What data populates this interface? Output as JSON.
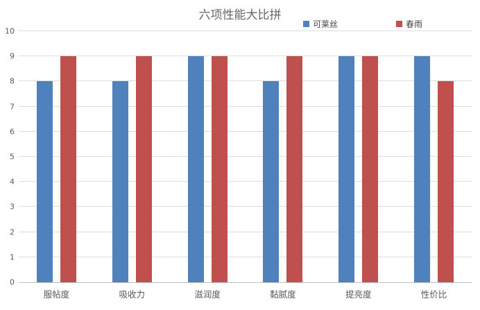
{
  "chart_data": {
    "type": "bar",
    "title": "六项性能大比拼",
    "categories": [
      "服帖度",
      "吸收力",
      "滋润度",
      "黏腻度",
      "提亮度",
      "性价比"
    ],
    "series": [
      {
        "name": "可莱丝",
        "color": "#4f81bd",
        "values": [
          8,
          8,
          9,
          8,
          9,
          9
        ]
      },
      {
        "name": "春雨",
        "color": "#c0504d",
        "values": [
          9,
          9,
          9,
          9,
          9,
          8
        ]
      }
    ],
    "xlabel": "",
    "ylabel": "",
    "ylim": [
      0,
      10
    ],
    "yticks": [
      0,
      1,
      2,
      3,
      4,
      5,
      6,
      7,
      8,
      9,
      10
    ],
    "grid": true,
    "legend_position": "top"
  },
  "colors": {
    "grid": "#dcdcdc",
    "axis": "#bfbfbf",
    "tick_text": "#595959",
    "title_text": "#666666",
    "background": "#ffffff"
  }
}
